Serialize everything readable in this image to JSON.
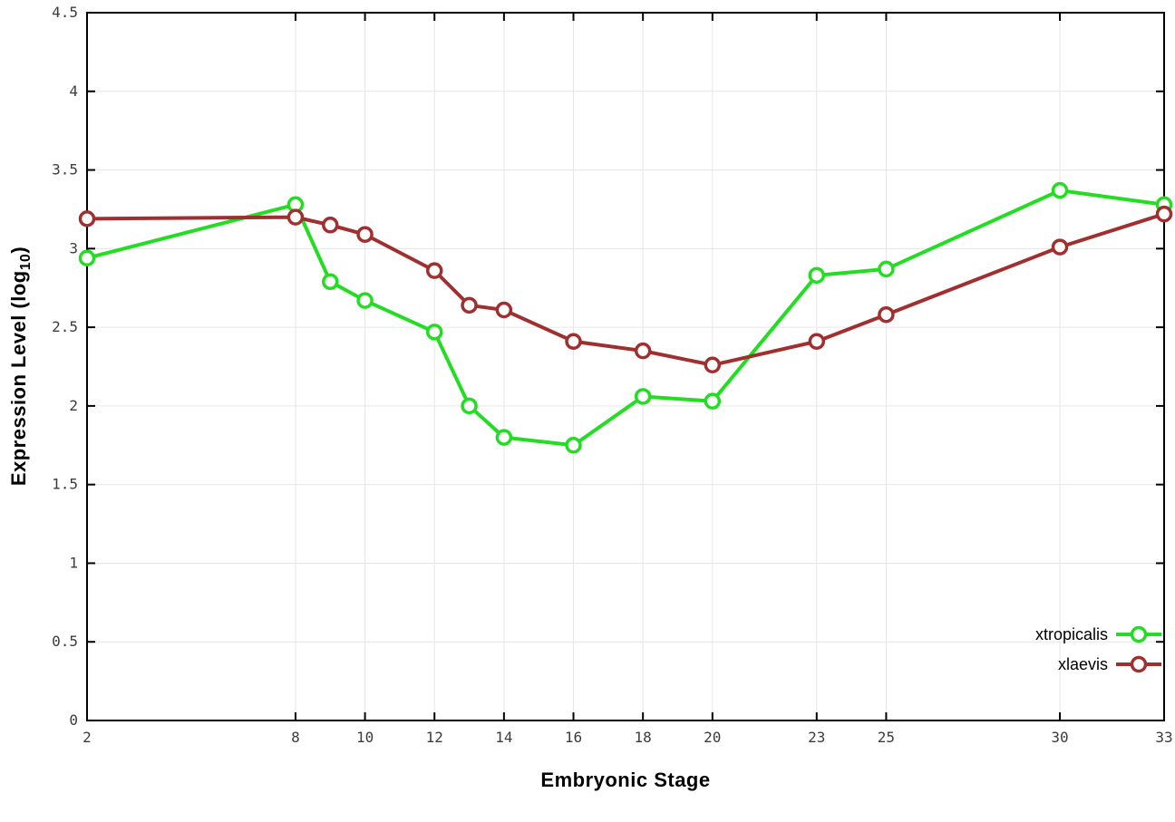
{
  "chart_data": {
    "type": "line",
    "title": "",
    "xlabel": "Embryonic Stage",
    "ylabel": "Expression Level (log10)",
    "ylabel_main": "Expression Level (log",
    "ylabel_sub": "10",
    "ylabel_close": ")",
    "x": [
      2,
      8,
      9,
      10,
      12,
      13,
      14,
      16,
      18,
      20,
      23,
      25,
      30,
      33
    ],
    "xlim": [
      2,
      33
    ],
    "ylim": [
      0,
      4.5
    ],
    "xticks": [
      2,
      8,
      10,
      12,
      14,
      16,
      18,
      20,
      23,
      25,
      30,
      33
    ],
    "xtick_labels": [
      "2",
      "8",
      "10",
      "12",
      "14",
      "16",
      "18",
      "20",
      "23",
      "25",
      "30",
      "33"
    ],
    "yticks": [
      0,
      0.5,
      1,
      1.5,
      2,
      2.5,
      3,
      3.5,
      4,
      4.5
    ],
    "ytick_labels": [
      "0",
      "0.5",
      "1",
      "1.5",
      "2",
      "2.5",
      "3",
      "3.5",
      "4",
      "4.5"
    ],
    "grid": true,
    "legend_position": "bottom-right",
    "series": [
      {
        "name": "xtropicalis",
        "color": "#22dd22",
        "values": [
          2.94,
          3.28,
          2.79,
          2.67,
          2.47,
          2.0,
          1.8,
          1.75,
          2.06,
          2.03,
          2.83,
          2.87,
          3.37,
          3.28
        ]
      },
      {
        "name": "xlaevis",
        "color": "#a03030",
        "values": [
          3.19,
          3.2,
          3.15,
          3.09,
          2.86,
          2.64,
          2.61,
          2.41,
          2.35,
          2.26,
          2.41,
          2.58,
          3.01,
          3.22
        ]
      }
    ]
  },
  "style": {
    "grid_color": "#e6e6e6",
    "axis_color": "#000000",
    "tick_label_color": "#3c3c3c",
    "marker_fill": "#ffffff"
  }
}
